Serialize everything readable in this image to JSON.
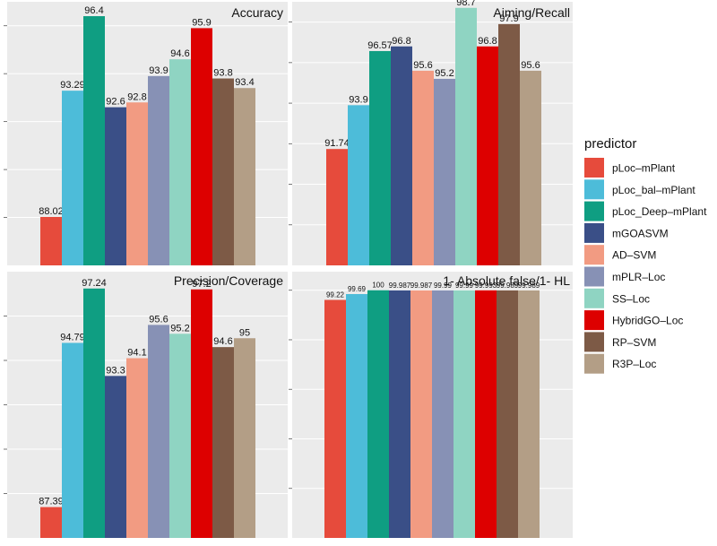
{
  "legend": {
    "title": "predictor",
    "position": "right"
  },
  "chart_data": [
    {
      "type": "bar",
      "title": "Accuracy",
      "ylim": [
        86,
        97
      ],
      "categories": [
        "pLoc–mPlant",
        "pLoc_bal–mPlant",
        "pLoc_Deep–mPlant",
        "mGOASVM",
        "AD–SVM",
        "mPLR–Loc",
        "SS–Loc",
        "HybridGO–Loc",
        "RP–SVM",
        "R3P–Loc"
      ],
      "values": [
        88.02,
        93.29,
        96.4,
        92.6,
        92.8,
        93.9,
        94.6,
        95.9,
        93.8,
        93.4
      ],
      "labels": [
        "88.02",
        "93.29",
        "96.4",
        "92.6",
        "92.8",
        "93.9",
        "94.6",
        "95.9",
        "93.8",
        "93.4"
      ]
    },
    {
      "type": "bar",
      "title": "Aiming/Recall",
      "ylim": [
        86,
        99
      ],
      "categories": [
        "pLoc–mPlant",
        "pLoc_bal–mPlant",
        "pLoc_Deep–mPlant",
        "mGOASVM",
        "AD–SVM",
        "mPLR–Loc",
        "SS–Loc",
        "HybridGO–Loc",
        "RP–SVM",
        "R3P–Loc"
      ],
      "values": [
        91.74,
        93.9,
        96.57,
        96.8,
        95.6,
        95.2,
        98.7,
        96.8,
        97.9,
        95.6
      ],
      "labels": [
        "91.74",
        "93.9",
        "96.57",
        "96.8",
        "95.6",
        "95.2",
        "98.7",
        "96.8",
        "97.9",
        "95.6"
      ]
    },
    {
      "type": "bar",
      "title": "Precision/Coverage",
      "ylim": [
        86,
        98
      ],
      "categories": [
        "pLoc–mPlant",
        "pLoc_bal–mPlant",
        "pLoc_Deep–mPlant",
        "mGOASVM",
        "AD–SVM",
        "mPLR–Loc",
        "SS–Loc",
        "HybridGO–Loc",
        "RP–SVM",
        "R3P–Loc"
      ],
      "values": [
        87.39,
        94.79,
        97.24,
        93.3,
        94.1,
        95.6,
        95.2,
        97.2,
        94.6,
        95
      ],
      "labels": [
        "87.39",
        "94.79",
        "97.24",
        "93.3",
        "94.1",
        "95.6",
        "95.2",
        "97.2",
        "94.6",
        "95"
      ]
    },
    {
      "type": "bar",
      "title": "1- Absolute false/1- HL",
      "ylim": [
        80,
        101.5
      ],
      "categories": [
        "pLoc–mPlant",
        "pLoc_bal–mPlant",
        "pLoc_Deep–mPlant",
        "mGOASVM",
        "AD–SVM",
        "mPLR–Loc",
        "SS–Loc",
        "HybridGO–Loc",
        "RP–SVM",
        "R3P–Loc"
      ],
      "values": [
        99.22,
        99.69,
        100,
        99.987,
        99.987,
        99.99,
        99.99,
        99.993,
        99.989,
        99.989
      ],
      "labels": [
        "99.22",
        "99.69",
        "100",
        "99.987",
        "99.987",
        "99.99",
        "99.99",
        "99.993",
        "99.989",
        "99.989"
      ]
    }
  ],
  "series_colors": [
    "#e64b3c",
    "#4dbcd9",
    "#0f9e82",
    "#3a4f87",
    "#f29b82",
    "#8791b5",
    "#8fd4c2",
    "#dd0000",
    "#7d5a46",
    "#b39e86"
  ]
}
